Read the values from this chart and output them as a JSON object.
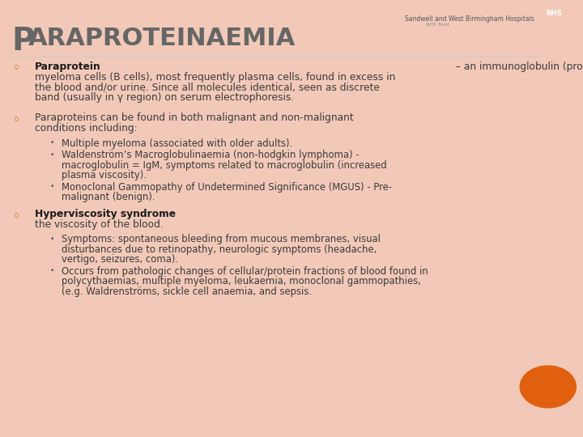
{
  "title_first": "P",
  "title_rest": "ARAPROTEINAEMIA",
  "background_color": "#f2c9b8",
  "content_bg": "#ffffff",
  "title_color": "#666666",
  "text_color": "#3a3a3a",
  "bold_color": "#1a1a1a",
  "bullet_color": "#cc6600",
  "sub_dot_color": "#555555",
  "orange_circle": "#e06010",
  "nhs_blue": "#003087",
  "font_size_title": 26,
  "font_size_body": 8.8,
  "font_size_sub": 8.4,
  "font_size_nhs": 5.5,
  "content": [
    {
      "bold": "Paraprotein",
      "normal": " – an immunoglobulin (protein) produced by a single clone of\nmyeloma cells (B cells), most frequently plasma cells, found in excess in\nthe blood and/or urine. Since all molecules identical, seen as discrete\nband (usually in γ region) on serum electrophoresis.",
      "subs": []
    },
    {
      "bold": "",
      "normal": "Paraproteins can be found in both malignant and non-malignant\nconditions including:",
      "subs": [
        "Multiple myeloma (associated with older adults).",
        "Waldenström’s Macroglobulinaemia (non-hodgkin lymphoma) -\nmacroglobulin = IgM, symptoms related to macroglobulin (increased\nplasma viscosity).",
        "Monoclonal Gammopathy of Undetermined Significance (MGUS) - Pre-\nmalignant (benign)."
      ]
    },
    {
      "bold": "Hyperviscosity syndrome",
      "normal": " - a group of symptoms triggered by increase in\nthe viscosity of the blood.",
      "subs": [
        "Symptoms: spontaneous bleeding from mucous membranes, visual\ndisturbances due to retinopathy, neurologic symptoms (headache,\nvertigo, seizures, coma).",
        "Occurs from pathologic changes of cellular/protein fractions of blood found in\npolycythaemias, multiple myeloma, leukaemia, monoclonal gammopathies,\n(e.g. Waldrenströms, sickle cell anaemia, and sepsis."
      ]
    }
  ]
}
